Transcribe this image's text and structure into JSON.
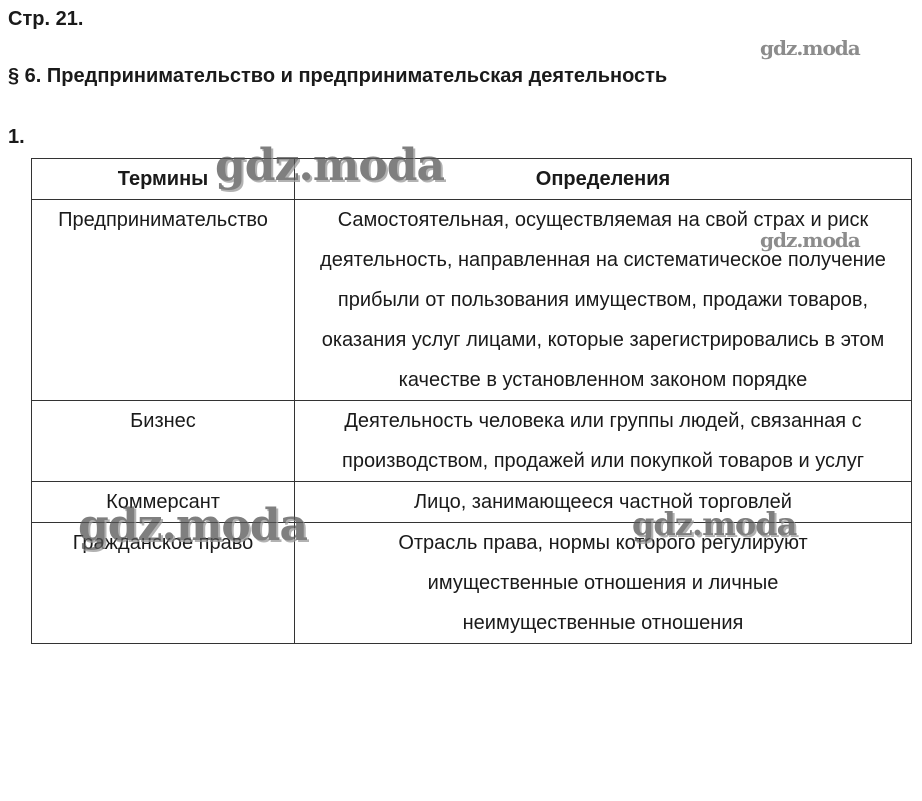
{
  "page": "Стр. 21.",
  "section_title": "§ 6. Предпринимательство и предпринимательская деятельность",
  "task_number": "1.",
  "table": {
    "headers": [
      "Термины",
      "Определения"
    ],
    "rows": [
      {
        "term": "Предпринимательство",
        "definition": "Самостоятельная, осуществляемая на свой страх и риск деятельность, направленная на систематическое получение прибыли от пользования имуществом, продажи товаров, оказания услуг лицами, которые зарегистрировались в этом качестве в установленном законом порядке"
      },
      {
        "term": "Бизнес",
        "definition": "Деятельность человека или группы людей, связанная с производством, продажей или покупкой товаров и услуг"
      },
      {
        "term": "Коммерсант",
        "definition": "Лицо, занимающееся частной торговлей"
      },
      {
        "term": "Гражданское право",
        "definition": "Отрасль права, нормы которого регулируют имущественные отношения и личные неимущественные отношения"
      }
    ]
  },
  "watermark": "gdz.moda"
}
